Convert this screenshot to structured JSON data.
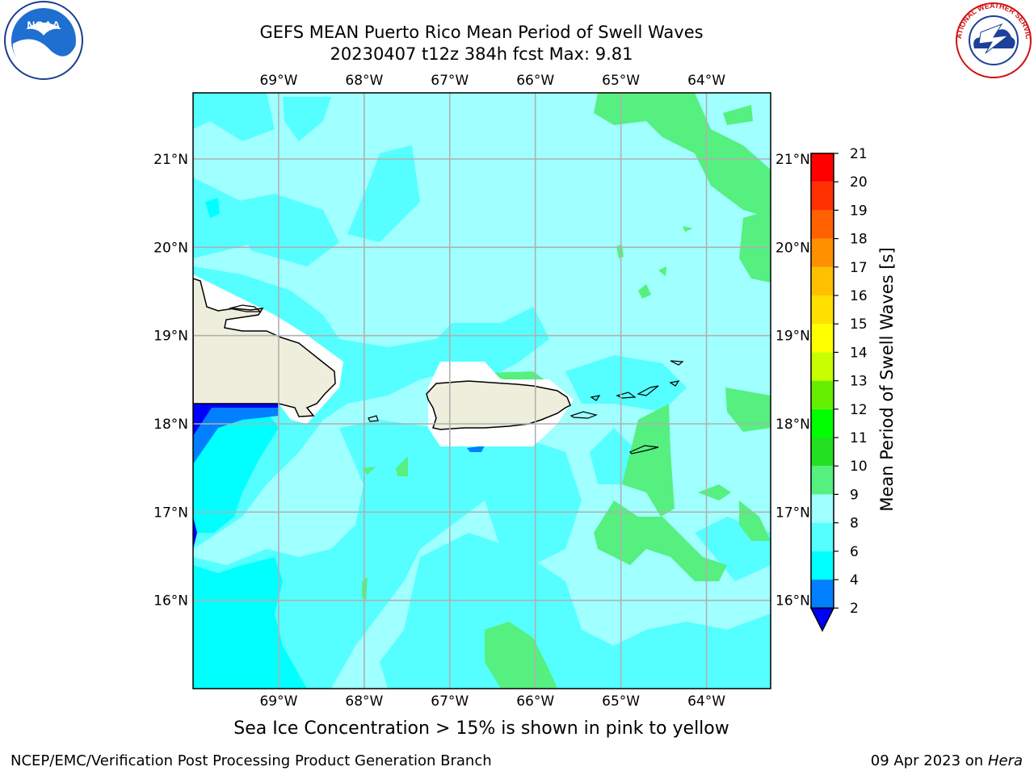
{
  "header": {
    "title_line1": "GEFS MEAN Puerto Rico Mean Period of Swell Waves",
    "title_line2": "20230407 t12z 384h fcst   Max: 9.81"
  },
  "logos": {
    "left": "NOAA",
    "right": "NATIONAL WEATHER SERVICE"
  },
  "note": "Sea Ice Concentration > 15% is shown in pink to yellow",
  "footer": {
    "left": "NCEP/EMC/Verification Post Processing Product Generation Branch",
    "right_prefix": "09 Apr 2023 on ",
    "right_host": "Hera"
  },
  "colors": {
    "land": "#eeeedc",
    "background": "#ffffff"
  },
  "chart_data": {
    "type": "heatmap",
    "title": "GEFS MEAN Puerto Rico Mean Period of Swell Waves",
    "subtitle": "20230407 t12z 384h fcst   Max: 9.81",
    "max_value": 9.81,
    "xlim": [
      -70,
      -63.25
    ],
    "ylim": [
      15,
      21.75
    ],
    "x_ticks": [
      {
        "value": -69,
        "label": "69°W"
      },
      {
        "value": -68,
        "label": "68°W"
      },
      {
        "value": -67,
        "label": "67°W"
      },
      {
        "value": -66,
        "label": "66°W"
      },
      {
        "value": -65,
        "label": "65°W"
      },
      {
        "value": -64,
        "label": "64°W"
      }
    ],
    "y_ticks": [
      {
        "value": 21,
        "label": "21°N"
      },
      {
        "value": 20,
        "label": "20°N"
      },
      {
        "value": 19,
        "label": "19°N"
      },
      {
        "value": 18,
        "label": "18°N"
      },
      {
        "value": 17,
        "label": "17°N"
      },
      {
        "value": 16,
        "label": "16°N"
      }
    ],
    "grid": true,
    "colorbar": {
      "label": "Mean Period of Swell Waves [s]",
      "levels": [
        "2",
        "4",
        "6",
        "8",
        "9",
        "10",
        "11",
        "12",
        "13",
        "14",
        "15",
        "16",
        "17",
        "18",
        "19",
        "20",
        "21"
      ],
      "colors": [
        "#0000ff",
        "#0080ff",
        "#00ffff",
        "#55ffff",
        "#a0ffff",
        "#55f080",
        "#22e022",
        "#00ff00",
        "#66ee00",
        "#c8ff00",
        "#ffff00",
        "#ffe000",
        "#ffc000",
        "#ff9000",
        "#ff6000",
        "#ff3000",
        "#ff0000"
      ],
      "extend": "min"
    },
    "regions": [
      {
        "name": "swell 8-9 s",
        "value_range": [
          8,
          9
        ],
        "color": "#a0ffff"
      },
      {
        "name": "swell 6-8 s",
        "value_range": [
          6,
          8
        ],
        "color": "#55ffff"
      },
      {
        "name": "swell 4-6 s",
        "value_range": [
          4,
          6
        ],
        "color": "#00ffff"
      },
      {
        "name": "swell 2-4 s",
        "value_range": [
          2,
          4
        ],
        "color": "#0080ff"
      },
      {
        "name": "swell < 2 s",
        "value_range": [
          0,
          2
        ],
        "color": "#0000ff"
      },
      {
        "name": "swell 9-10 s",
        "value_range": [
          9,
          10
        ],
        "color": "#55f080"
      }
    ]
  }
}
